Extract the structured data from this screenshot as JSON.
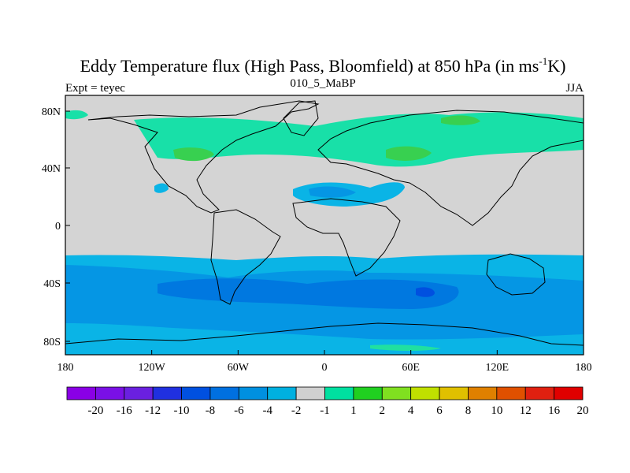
{
  "title": {
    "main_prefix": "Eddy Temperature flux (High Pass, Bloomfield) at 850 hPa (in ms",
    "superscript": "-1",
    "main_suffix": "K)",
    "left": "Expt = teyec",
    "center": "010_5_MaBP",
    "right": "JJA"
  },
  "map": {
    "ocean_color": "#d4d4d4",
    "lon_ticks": [
      "180",
      "120W",
      "60W",
      "0",
      "60E",
      "120E",
      "180"
    ],
    "lat_ticks": [
      "80N",
      "40N",
      "0",
      "40S",
      "80S"
    ]
  },
  "colorbar": {
    "colors": [
      "#8a00e6",
      "#7a10e6",
      "#6a20e0",
      "#2030e0",
      "#0050e0",
      "#0070e0",
      "#0090e0",
      "#00b0e0",
      "#d0d0d0",
      "#00e0a0",
      "#20d020",
      "#80e020",
      "#c0e000",
      "#e0c000",
      "#e08000",
      "#e05000",
      "#e02010",
      "#e00000"
    ],
    "labels": [
      "-20",
      "-16",
      "-12",
      "-10",
      "-8",
      "-6",
      "-4",
      "-2",
      "-1",
      "1",
      "2",
      "4",
      "6",
      "8",
      "10",
      "12",
      "16",
      "20"
    ]
  }
}
